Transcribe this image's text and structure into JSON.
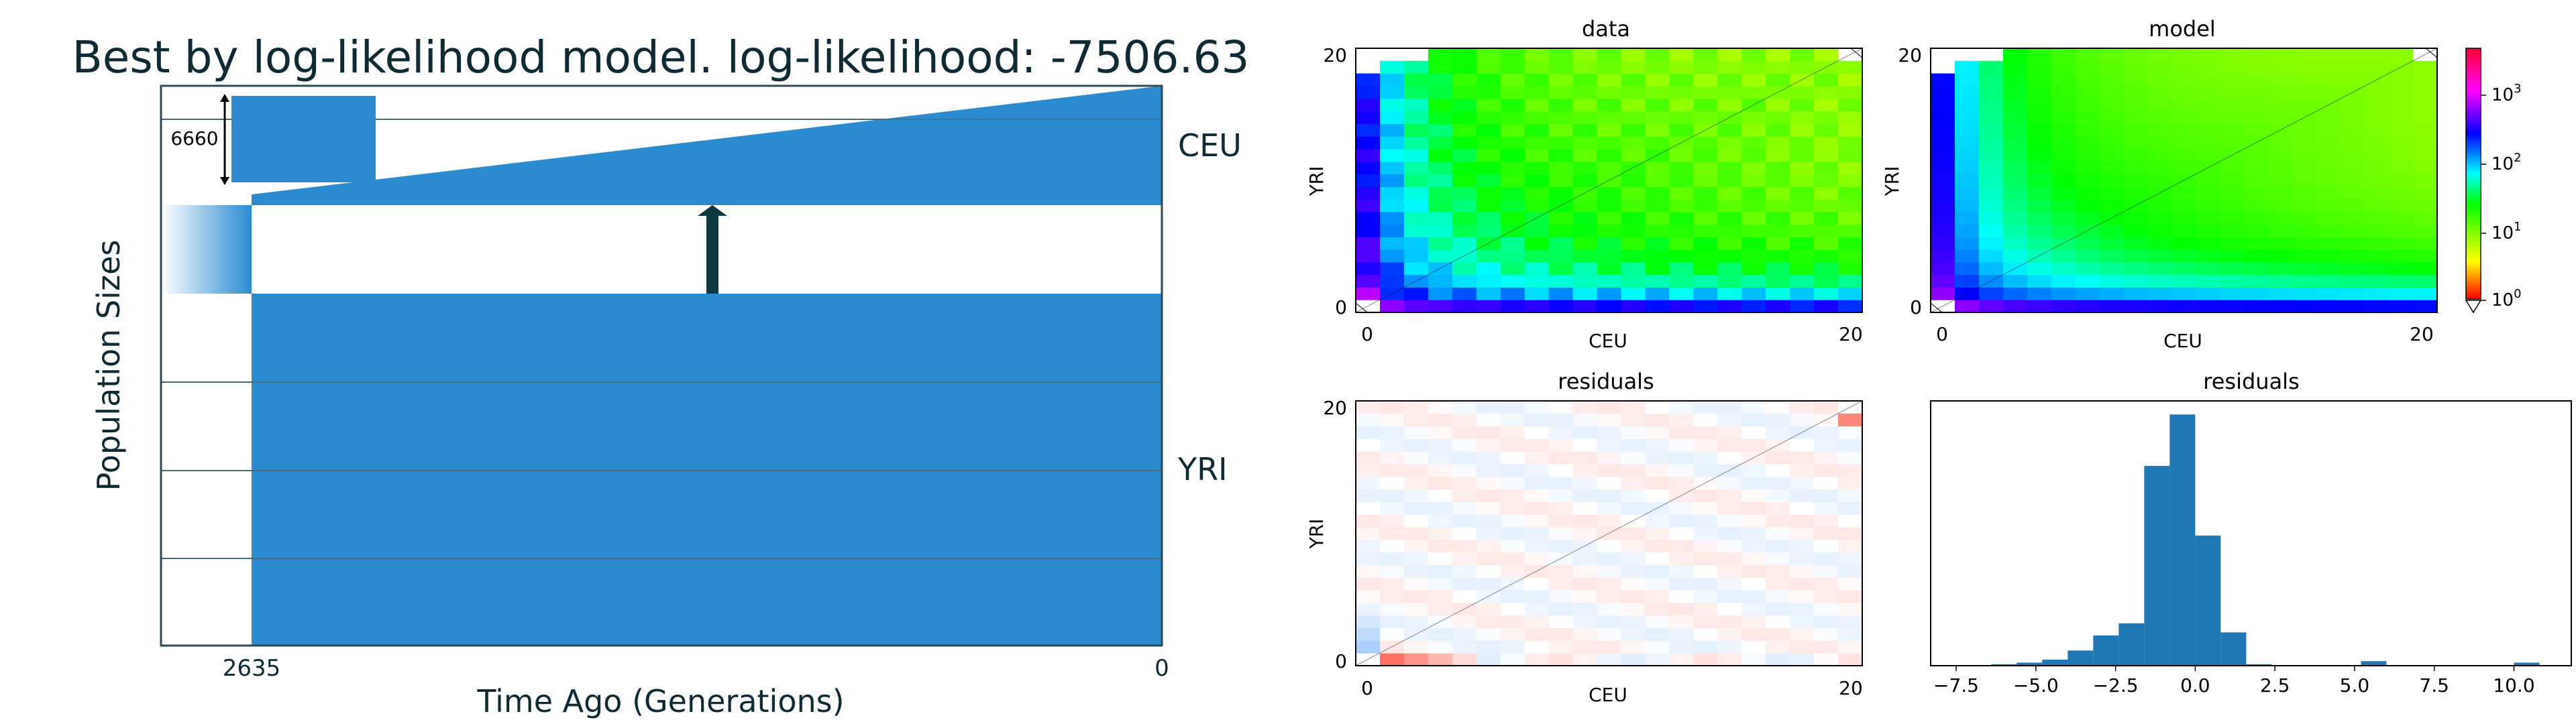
{
  "demography": {
    "title": "Best by log-likelihood model. log-likelihood: -7506.63",
    "ylabel": "Population Sizes",
    "xlabel": "Time Ago (Generations)",
    "x_ticks": [
      "2635",
      "0"
    ],
    "populations": [
      "CEU",
      "YRI"
    ],
    "size_annotation": "6660",
    "color": "#2a8bd1",
    "migration_color": "#0d3a3f",
    "chart_data": {
      "type": "demography",
      "split_time_generations": 2635,
      "present_generations": 0,
      "scale_bar_size": 6660,
      "populations": [
        {
          "name": "CEU",
          "growth": "exponential",
          "relative_size_start": 0.08,
          "relative_size_end": 1.0
        },
        {
          "name": "YRI",
          "growth": "constant",
          "relative_size": 1.0
        }
      ],
      "migration": {
        "from": "YRI",
        "to": "CEU"
      }
    }
  },
  "panels": {
    "data_title": "data",
    "model_title": "model",
    "residuals_title": "residuals",
    "hist_title": "residuals",
    "xlabel": "CEU",
    "ylabel": "YRI",
    "tick_0": "0",
    "tick_20": "20",
    "colorbar_ticks": [
      "10",
      "10",
      "10",
      "10"
    ],
    "colorbar_exps": [
      "3",
      "2",
      "1",
      "0"
    ]
  },
  "chart_data": [
    {
      "type": "heatmap",
      "title": "data",
      "xlabel": "CEU",
      "ylabel": "YRI",
      "xlim": [
        0,
        20
      ],
      "ylim": [
        0,
        20
      ],
      "scale": "log",
      "clim": [
        1,
        4000
      ]
    },
    {
      "type": "heatmap",
      "title": "model",
      "xlabel": "CEU",
      "ylabel": "YRI",
      "xlim": [
        0,
        20
      ],
      "ylim": [
        0,
        20
      ],
      "scale": "log",
      "clim": [
        1,
        4000
      ]
    },
    {
      "type": "heatmap",
      "title": "residuals",
      "xlabel": "CEU",
      "ylabel": "YRI",
      "xlim": [
        0,
        20
      ],
      "ylim": [
        0,
        20
      ],
      "scale": "diverging"
    },
    {
      "type": "bar",
      "title": "residuals",
      "x_ticks": [
        "−7.5",
        "−5.0",
        "−2.5",
        "0.0",
        "2.5",
        "5.0",
        "7.5",
        "10.0"
      ],
      "bin_width": 0.8,
      "bins": [
        {
          "x": -6.0,
          "count": 1
        },
        {
          "x": -5.2,
          "count": 2
        },
        {
          "x": -4.4,
          "count": 4
        },
        {
          "x": -3.6,
          "count": 10
        },
        {
          "x": -2.8,
          "count": 20
        },
        {
          "x": -2.0,
          "count": 28
        },
        {
          "x": -1.2,
          "count": 132
        },
        {
          "x": -0.4,
          "count": 166
        },
        {
          "x": 0.4,
          "count": 86
        },
        {
          "x": 1.2,
          "count": 22
        },
        {
          "x": 2.0,
          "count": 1
        },
        {
          "x": 5.6,
          "count": 3
        },
        {
          "x": 10.4,
          "count": 2
        }
      ],
      "color": "#1f77b4"
    }
  ]
}
